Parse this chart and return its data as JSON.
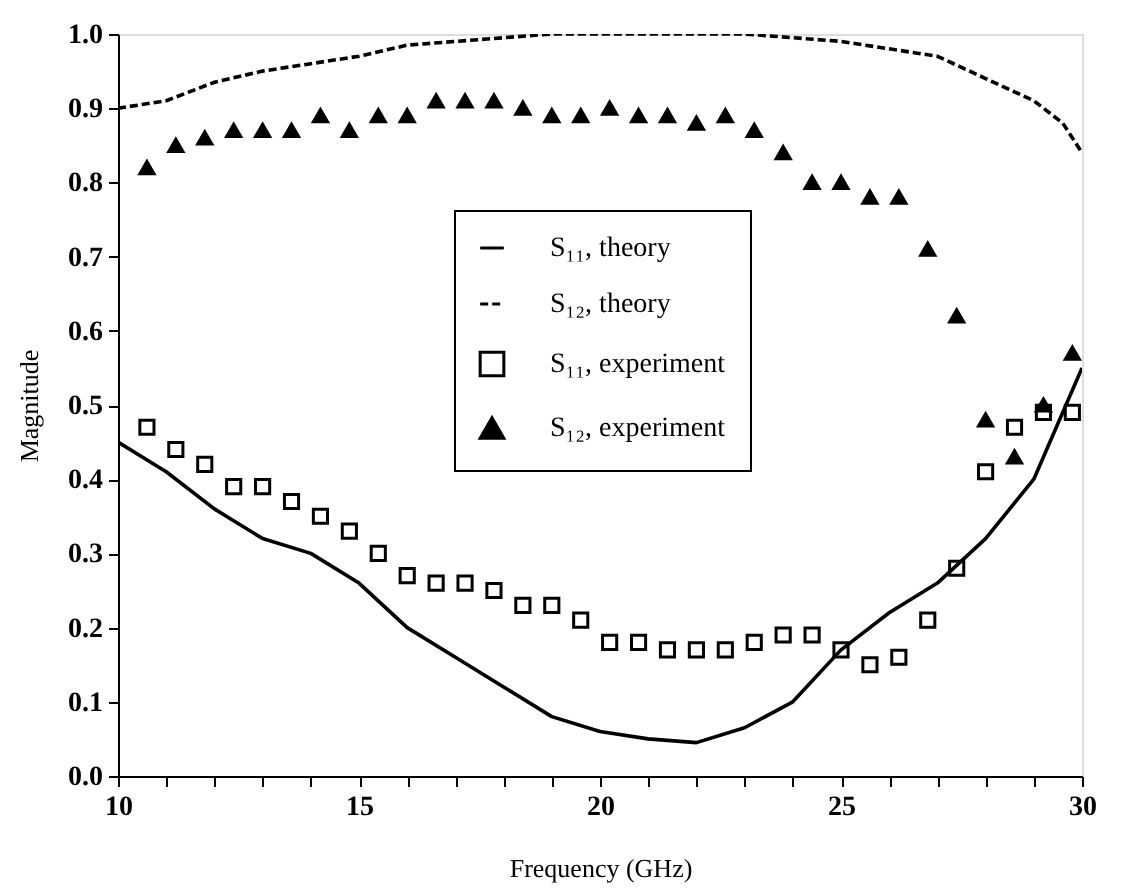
{
  "chart_data": {
    "type": "scatter",
    "xlabel": "Frequency (GHz)",
    "ylabel": "Magnitude",
    "xlim": [
      10,
      30
    ],
    "ylim": [
      0,
      1.0
    ],
    "xticks": [
      10,
      {
        "value": 11,
        "label": null
      },
      {
        "value": 12,
        "label": null
      },
      {
        "value": 13,
        "label": null
      },
      {
        "value": 14,
        "label": null
      },
      15,
      {
        "value": 16,
        "label": null
      },
      {
        "value": 17,
        "label": null
      },
      {
        "value": 18,
        "label": null
      },
      {
        "value": 19,
        "label": null
      },
      20,
      {
        "value": 21,
        "label": null
      },
      {
        "value": 22,
        "label": null
      },
      {
        "value": 23,
        "label": null
      },
      {
        "value": 24,
        "label": null
      },
      25,
      {
        "value": 26,
        "label": null
      },
      {
        "value": 27,
        "label": null
      },
      {
        "value": 28,
        "label": null
      },
      {
        "value": 29,
        "label": null
      },
      30
    ],
    "yticks": [
      {
        "value": 0,
        "label": "0.0"
      },
      0.1,
      0.2,
      0.3,
      0.4,
      0.5,
      0.6,
      0.7,
      0.8,
      0.9,
      {
        "value": 1.0,
        "label": "1.0"
      }
    ],
    "grid": false,
    "legend": "center",
    "series": [
      {
        "name": "S₁₁, theory",
        "type": "line",
        "line_style": "solid",
        "marker": "none",
        "color": "#000000",
        "x": [
          10,
          11,
          12,
          13,
          14,
          15,
          16,
          17,
          18,
          19,
          20,
          21,
          22,
          23,
          24,
          25,
          26,
          27,
          28,
          29,
          30
        ],
        "values": [
          0.45,
          0.41,
          0.36,
          0.32,
          0.3,
          0.26,
          0.2,
          0.16,
          0.12,
          0.08,
          0.06,
          0.05,
          0.045,
          0.065,
          0.1,
          0.17,
          0.22,
          0.26,
          0.32,
          0.4,
          0.55
        ]
      },
      {
        "name": "S₁₂, theory",
        "type": "line",
        "line_style": "dashed",
        "marker": "none",
        "color": "#000000",
        "x": [
          10,
          11,
          12,
          13,
          14,
          15,
          16,
          17,
          18,
          19,
          20,
          22,
          23,
          24,
          25,
          26,
          27,
          28,
          29,
          29.6,
          30
        ],
        "values": [
          0.9,
          0.91,
          0.935,
          0.95,
          0.96,
          0.97,
          0.985,
          0.99,
          0.995,
          1.0,
          1.0,
          1.0,
          1.0,
          0.995,
          0.99,
          0.98,
          0.97,
          0.94,
          0.91,
          0.88,
          0.84
        ]
      },
      {
        "name": "S₁₁, experiment",
        "type": "scatter",
        "marker": "square",
        "color": "#000000",
        "x": [
          10.6,
          11.2,
          11.8,
          12.4,
          13.0,
          13.6,
          14.2,
          14.8,
          15.4,
          16.0,
          16.6,
          17.2,
          17.8,
          18.4,
          19.0,
          19.6,
          20.2,
          20.8,
          21.4,
          22.0,
          22.6,
          23.2,
          23.8,
          24.4,
          25.0,
          25.6,
          26.2,
          26.8,
          27.4,
          28.0,
          28.6,
          29.2,
          29.8
        ],
        "values": [
          0.47,
          0.44,
          0.42,
          0.39,
          0.39,
          0.37,
          0.35,
          0.33,
          0.3,
          0.27,
          0.26,
          0.26,
          0.25,
          0.23,
          0.23,
          0.21,
          0.18,
          0.18,
          0.17,
          0.17,
          0.17,
          0.18,
          0.19,
          0.19,
          0.17,
          0.15,
          0.16,
          0.21,
          0.28,
          0.41,
          0.47,
          0.49,
          0.49
        ]
      },
      {
        "name": "S₁₂, experiment",
        "type": "scatter",
        "marker": "triangle",
        "color": "#000000",
        "x": [
          10.6,
          11.2,
          11.8,
          12.4,
          13.0,
          13.6,
          14.2,
          14.8,
          15.4,
          16.0,
          16.6,
          17.2,
          17.8,
          18.4,
          19.0,
          19.6,
          20.2,
          20.8,
          21.4,
          22.0,
          22.6,
          23.2,
          23.8,
          24.4,
          25.0,
          25.6,
          26.2,
          26.8,
          27.4,
          28.0,
          28.6,
          29.2,
          29.8
        ],
        "values": [
          0.82,
          0.85,
          0.86,
          0.87,
          0.87,
          0.87,
          0.89,
          0.87,
          0.89,
          0.89,
          0.91,
          0.91,
          0.91,
          0.9,
          0.89,
          0.89,
          0.9,
          0.89,
          0.89,
          0.88,
          0.89,
          0.87,
          0.84,
          0.8,
          0.8,
          0.78,
          0.78,
          0.71,
          0.62,
          0.48,
          0.43,
          0.5,
          0.57
        ]
      }
    ]
  }
}
